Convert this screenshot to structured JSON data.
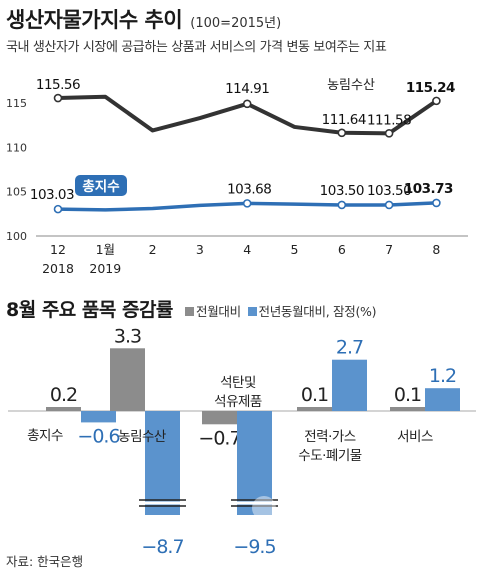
{
  "title": "생산자물가지수 추이",
  "title_note": "(100=2015년)",
  "subtitle": "국내 생산자가 시장에 공급하는 상품과 서비스의 가격 변동 보여주는 지표",
  "section2_title": "8월 주요 품목 증감률",
  "legend": {
    "mom": "전월대비",
    "yoy": "전년동월대비, 잠정(%)",
    "mom_color": "#8c8c8c",
    "yoy_color": "#5b93cd"
  },
  "source": "자료: 한국은행",
  "watermark": "우리방송뉴스",
  "chart_data": [
    {
      "type": "line",
      "title": "생산자물가지수 추이",
      "x": [
        "12",
        "1월",
        "2",
        "3",
        "4",
        "5",
        "6",
        "7",
        "8"
      ],
      "x_years": [
        "2018",
        "2019"
      ],
      "y_ticks": [
        100,
        105,
        110,
        115
      ],
      "ylim": [
        100,
        117
      ],
      "grid": false,
      "series": [
        {
          "name": "농림수산",
          "color": "#333333",
          "values": [
            115.56,
            115.7,
            111.9,
            113.3,
            114.91,
            112.3,
            111.64,
            111.58,
            115.24
          ],
          "labels": [
            "115.56",
            "",
            "",
            "",
            "114.91",
            "",
            "111.64",
            "111.58",
            "115.24"
          ]
        },
        {
          "name": "총지수",
          "color": "#2e6fb5",
          "values": [
            103.03,
            102.95,
            103.1,
            103.45,
            103.68,
            103.6,
            103.5,
            103.5,
            103.73
          ],
          "labels": [
            "103.03",
            "",
            "",
            "",
            "103.68",
            "",
            "103.50",
            "103.50",
            "103.73"
          ]
        }
      ]
    },
    {
      "type": "bar",
      "title": "8월 주요 품목 증감률",
      "categories": [
        "총지수",
        "농림수산",
        "석탄및\n석유제품",
        "전력·가스\n수도·폐기물",
        "서비스"
      ],
      "series": [
        {
          "name": "전월대비",
          "color": "#8c8c8c",
          "values": [
            0.2,
            3.3,
            -0.7,
            0.1,
            0.1
          ],
          "labels": [
            "0.2",
            "3.3",
            "−0.7",
            "0.1",
            "0.1"
          ]
        },
        {
          "name": "전년동월대비, 잠정(%)",
          "color": "#5b93cd",
          "values": [
            -0.6,
            -8.7,
            -9.5,
            2.7,
            1.2
          ],
          "labels": [
            "−0.6",
            "−8.7",
            "−9.5",
            "2.7",
            "1.2"
          ]
        }
      ],
      "axis_break": true
    }
  ]
}
